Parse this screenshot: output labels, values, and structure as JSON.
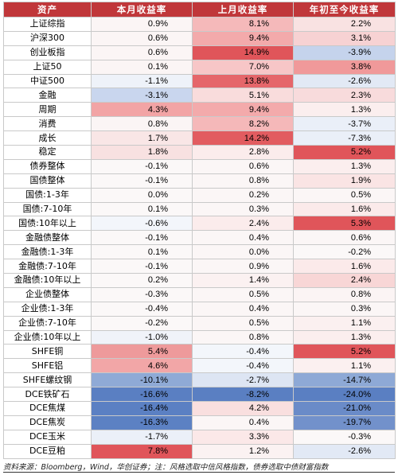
{
  "headers": [
    "资产",
    "本月收益率",
    "上月收益率",
    "年初至今收益率"
  ],
  "colors": {
    "header_bg": "#c0373a",
    "pos_strong": "#e0555a",
    "pos_mid": "#ee9a9b",
    "pos_light": "#f7d2d3",
    "neutral": "#fbf5f5",
    "neg_light": "#d7e1f1",
    "neg_mid": "#8faad6",
    "neg_strong": "#5a7fc2"
  },
  "rows": [
    {
      "name": "上证综指",
      "m": "0.9%",
      "p": "8.1%",
      "y": "2.2%",
      "cm": "#fbf5f5",
      "cp": "#f5b9ba",
      "cy": "#f9e2e2"
    },
    {
      "name": "沪深300",
      "m": "0.6%",
      "p": "9.4%",
      "y": "3.1%",
      "cm": "#fbf5f5",
      "cp": "#f3aaab",
      "cy": "#f7d2d3"
    },
    {
      "name": "创业板指",
      "m": "0.6%",
      "p": "14.9%",
      "y": "-3.9%",
      "cm": "#fbf5f5",
      "cp": "#e0555a",
      "cy": "#c5d3ec"
    },
    {
      "name": "上证50",
      "m": "0.1%",
      "p": "7.0%",
      "y": "3.8%",
      "cm": "#fbf5f5",
      "cp": "#f7c6c7",
      "cy": "#f0999a"
    },
    {
      "name": "中证500",
      "m": "-1.1%",
      "p": "13.8%",
      "y": "-2.6%",
      "cm": "#eef2f9",
      "cp": "#e5666a",
      "cy": "#e2e9f5"
    },
    {
      "name": "金融",
      "m": "-3.1%",
      "p": "5.1%",
      "y": "2.3%",
      "cm": "#c9d6ee",
      "cp": "#f9dcdc",
      "cy": "#f8dbdc"
    },
    {
      "name": "周期",
      "m": "4.3%",
      "p": "9.4%",
      "y": "1.3%",
      "cm": "#f2a4a5",
      "cp": "#f3aaab",
      "cy": "#fbeeee"
    },
    {
      "name": "消费",
      "m": "0.8%",
      "p": "8.2%",
      "y": "-3.7%",
      "cm": "#fbf5f5",
      "cp": "#f5b8b9",
      "cy": "#eaeff8"
    },
    {
      "name": "成长",
      "m": "1.7%",
      "p": "14.2%",
      "y": "-7.3%",
      "cm": "#f9e6e6",
      "cp": "#e25c60",
      "cy": "#eaeff8"
    },
    {
      "name": "稳定",
      "m": "1.8%",
      "p": "2.8%",
      "y": "5.2%",
      "cm": "#f8e1e1",
      "cp": "#fbecec",
      "cy": "#e0555a"
    },
    {
      "name": "债券整体",
      "m": "-0.1%",
      "p": "0.6%",
      "y": "1.3%",
      "cm": "#fbf8f8",
      "cp": "#fbf6f6",
      "cy": "#fbeeee"
    },
    {
      "name": "国债整体",
      "m": "-0.1%",
      "p": "0.8%",
      "y": "1.9%",
      "cm": "#fbf8f8",
      "cp": "#fbf6f6",
      "cy": "#fae4e4"
    },
    {
      "name": "国债:1-3年",
      "m": "0.0%",
      "p": "0.2%",
      "y": "0.5%",
      "cm": "#fbf8f8",
      "cp": "#fbf6f6",
      "cy": "#fbf6f6"
    },
    {
      "name": "国债:7-10年",
      "m": "0.1%",
      "p": "0.3%",
      "y": "1.6%",
      "cm": "#fbf8f8",
      "cp": "#fbf6f6",
      "cy": "#fbeaea"
    },
    {
      "name": "国债:10年以上",
      "m": "-0.6%",
      "p": "2.4%",
      "y": "5.3%",
      "cm": "#f3f6fb",
      "cp": "#fbecec",
      "cy": "#e0555a"
    },
    {
      "name": "金融债整体",
      "m": "-0.1%",
      "p": "0.4%",
      "y": "0.6%",
      "cm": "#fbf8f8",
      "cp": "#fbf6f6",
      "cy": "#fbf6f6"
    },
    {
      "name": "金融债:1-3年",
      "m": "0.1%",
      "p": "0.0%",
      "y": "-0.2%",
      "cm": "#fbf8f8",
      "cp": "#fbf6f6",
      "cy": "#fbf8f8"
    },
    {
      "name": "金融债:7-10年",
      "m": "-0.1%",
      "p": "0.9%",
      "y": "1.6%",
      "cm": "#fbf8f8",
      "cp": "#fbf6f6",
      "cy": "#fbeaea"
    },
    {
      "name": "金融债:10年以上",
      "m": "0.2%",
      "p": "1.4%",
      "y": "2.4%",
      "cm": "#fbf8f8",
      "cp": "#fbf1f1",
      "cy": "#f8d6d6"
    },
    {
      "name": "企业债整体",
      "m": "-0.3%",
      "p": "0.5%",
      "y": "0.8%",
      "cm": "#fbf8f8",
      "cp": "#fbf6f6",
      "cy": "#fbf4f4"
    },
    {
      "name": "企业债:1-3年",
      "m": "-0.4%",
      "p": "0.4%",
      "y": "0.3%",
      "cm": "#fbf8f8",
      "cp": "#fbf6f6",
      "cy": "#fbf6f6"
    },
    {
      "name": "企业债:7-10年",
      "m": "-0.2%",
      "p": "0.5%",
      "y": "1.1%",
      "cm": "#fbf8f8",
      "cp": "#fbf6f6",
      "cy": "#fbf0f0"
    },
    {
      "name": "企业债:10年以上",
      "m": "-1.0%",
      "p": "0.8%",
      "y": "1.3%",
      "cm": "#f0f3f9",
      "cp": "#fbf6f6",
      "cy": "#fbeeee"
    },
    {
      "name": "SHFE铜",
      "m": "5.4%",
      "p": "-0.4%",
      "y": "5.2%",
      "cm": "#ee9a9b",
      "cp": "#f3f6fb",
      "cy": "#e0555a"
    },
    {
      "name": "SHFE铝",
      "m": "4.6%",
      "p": "-0.4%",
      "y": "1.1%",
      "cm": "#f2a6a7",
      "cp": "#f3f6fb",
      "cy": "#fbf0f0"
    },
    {
      "name": "SHFE螺纹钢",
      "m": "-10.1%",
      "p": "-2.7%",
      "y": "-14.7%",
      "cm": "#8faad6",
      "cp": "#dde5f3",
      "cy": "#8ea9d6"
    },
    {
      "name": "DCE铁矿石",
      "m": "-16.6%",
      "p": "-8.2%",
      "y": "-24.0%",
      "cm": "#5a7fc2",
      "cp": "#5a7fc2",
      "cy": "#5a7fc2"
    },
    {
      "name": "DCE焦煤",
      "m": "-16.4%",
      "p": "4.2%",
      "y": "-21.0%",
      "cm": "#5b80c3",
      "cp": "#f9dfdf",
      "cy": "#6a8bc8"
    },
    {
      "name": "DCE焦炭",
      "m": "-16.3%",
      "p": "0.4%",
      "y": "-19.7%",
      "cm": "#5c81c3",
      "cp": "#fbf6f6",
      "cy": "#7291cb"
    },
    {
      "name": "DCE玉米",
      "m": "-1.7%",
      "p": "3.3%",
      "y": "-0.3%",
      "cm": "#ebf0f8",
      "cp": "#fbe8e8",
      "cy": "#fbf8f8"
    },
    {
      "name": "DCE豆粕",
      "m": "7.8%",
      "p": "1.2%",
      "y": "-2.6%",
      "cm": "#e0555a",
      "cp": "#fbf2f2",
      "cy": "#e2e9f5"
    }
  ],
  "footer": "资料来源：Bloomberg，Wind，华创证券；注：风格选取中信风格指数，债券选取中债财富指数"
}
